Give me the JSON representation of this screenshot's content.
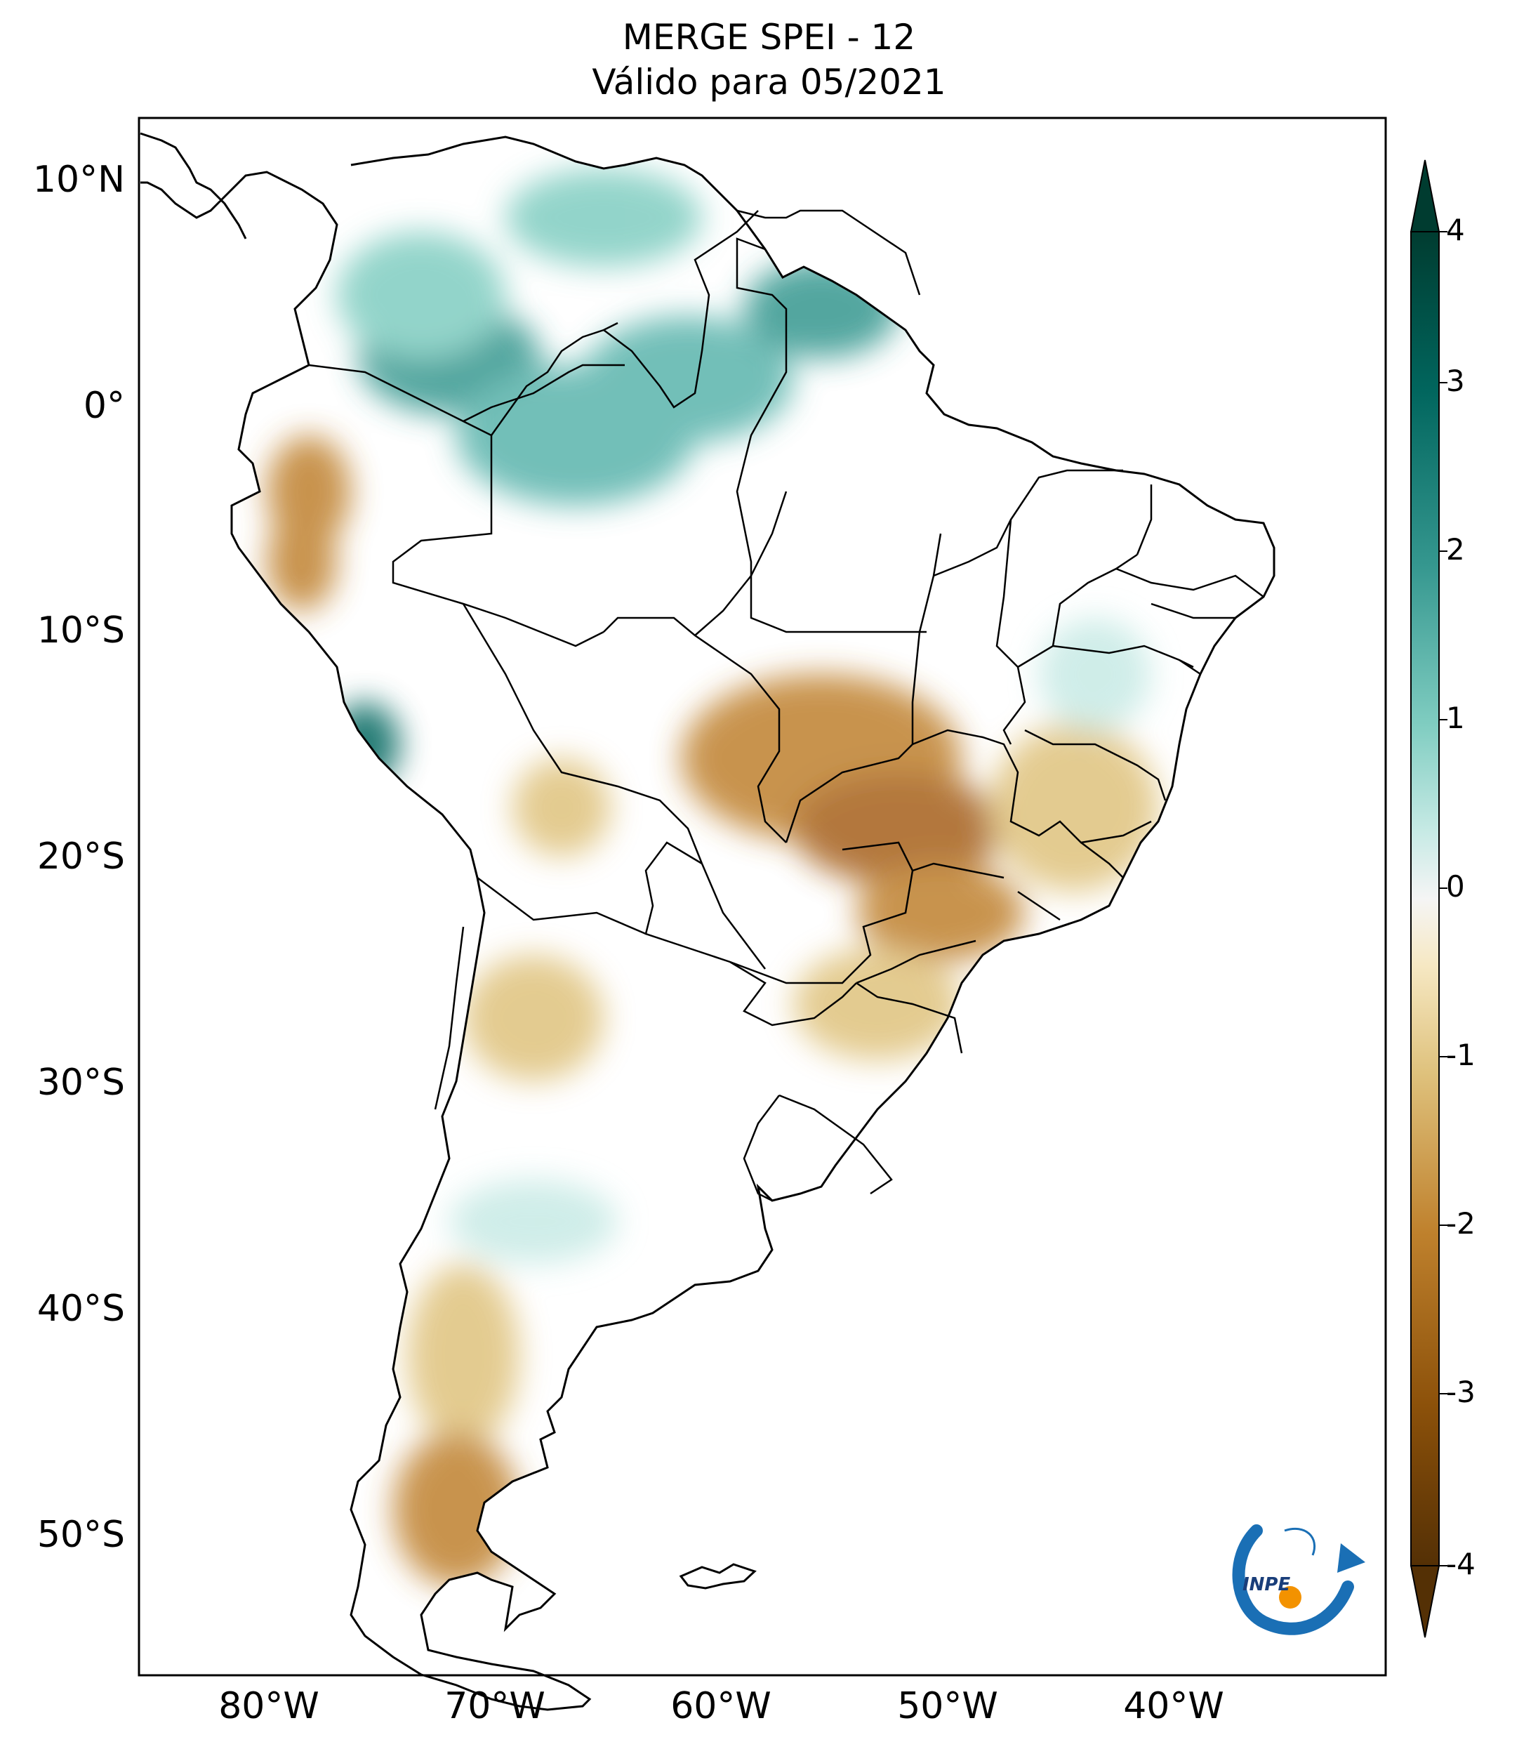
{
  "title": {
    "line1": "MERGE   SPEI - 12",
    "line2": "Válido para 05/2021"
  },
  "map": {
    "lat_labels": [
      "10°N",
      "0°",
      "10°S",
      "20°S",
      "30°S",
      "40°S",
      "50°S"
    ],
    "lon_labels": [
      "80°W",
      "70°W",
      "60°W",
      "50°W",
      "40°W"
    ],
    "extent": {
      "lon_min": -85,
      "lon_max": -30,
      "lat_min": -56,
      "lat_max": 13
    },
    "land_color": "#ffffff",
    "border_color": "#000000"
  },
  "colorbar": {
    "ticks": [
      "4",
      "3",
      "2",
      "1",
      "0",
      "-1",
      "-2",
      "-3",
      "-4"
    ],
    "min": -4,
    "max": 4,
    "colors": [
      "#543005",
      "#8c510a",
      "#bf812d",
      "#dfc27d",
      "#f6e8c3",
      "#f5f5f5",
      "#c7eae5",
      "#80cdc1",
      "#35978f",
      "#01665e",
      "#003c30"
    ]
  },
  "logo": {
    "text": "INPE",
    "colors": {
      "blue": "#1a6fb5",
      "orange": "#f39200"
    }
  }
}
